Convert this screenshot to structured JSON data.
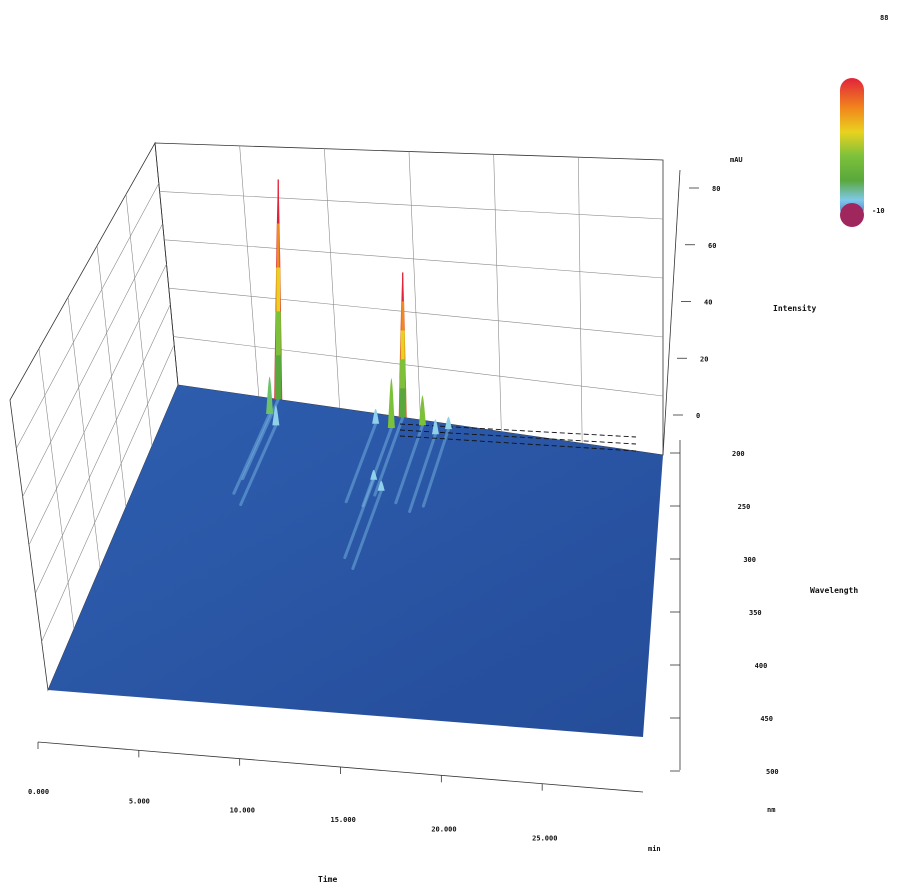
{
  "chart_data": {
    "type": "surface-3d",
    "colorbar": {
      "max_label": "88",
      "min_label": "-10"
    },
    "time_axis": {
      "title": "Time",
      "unit": "min",
      "ticks": [
        "0.000",
        "5.000",
        "10.000",
        "15.000",
        "20.000",
        "25.000"
      ],
      "range": [
        0,
        30
      ]
    },
    "wavelength_axis": {
      "title": "Wavelength",
      "unit": "nm",
      "ticks": [
        "200",
        "250",
        "300",
        "350",
        "400",
        "450",
        "500"
      ],
      "range": [
        200,
        500
      ]
    },
    "intensity_axis": {
      "title": "Intensity",
      "unit": "mAU",
      "ticks": [
        "0",
        "20",
        "40",
        "60",
        "80"
      ],
      "range": [
        -10,
        88
      ]
    },
    "peaks": [
      {
        "time": 6.2,
        "wavelength": 200,
        "intensity": 88,
        "color": "#d8232a"
      },
      {
        "time": 6.0,
        "wavelength": 215,
        "intensity": 15,
        "color": "#6cc26a"
      },
      {
        "time": 6.6,
        "wavelength": 225,
        "intensity": 8,
        "color": "#8fd0ea"
      },
      {
        "time": 13.9,
        "wavelength": 200,
        "intensity": 58,
        "color": "#e0562a"
      },
      {
        "time": 13.4,
        "wavelength": 212,
        "intensity": 20,
        "color": "#7cc238"
      },
      {
        "time": 15.2,
        "wavelength": 205,
        "intensity": 12,
        "color": "#7cc238"
      },
      {
        "time": 12.4,
        "wavelength": 210,
        "intensity": 6,
        "color": "#8fd0ea"
      },
      {
        "time": 16.1,
        "wavelength": 212,
        "intensity": 6,
        "color": "#8fd0ea"
      },
      {
        "time": 16.8,
        "wavelength": 205,
        "intensity": 5,
        "color": "#8fd0ea"
      },
      {
        "time": 13.2,
        "wavelength": 265,
        "intensity": 4,
        "color": "#8fd0ea"
      },
      {
        "time": 13.8,
        "wavelength": 275,
        "intensity": 4,
        "color": "#8fd0ea"
      }
    ]
  }
}
